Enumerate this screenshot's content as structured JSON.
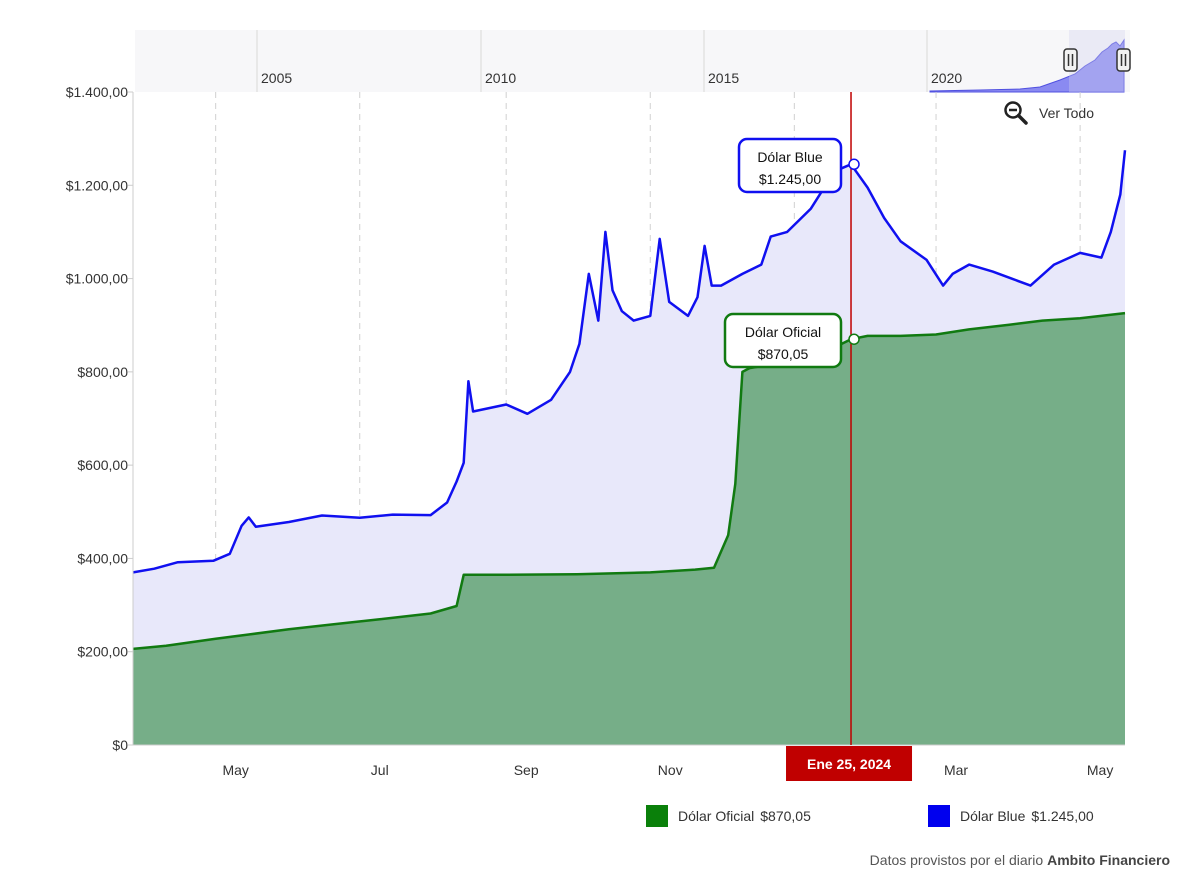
{
  "colors": {
    "oficial_line": "#117a11",
    "oficial_fill": "#76ae88",
    "blue_line": "#1010f0",
    "blue_fill": "#e8e8fa",
    "crosshair": "#c00000",
    "navigator_fill": "#7d7df0"
  },
  "reset_zoom": {
    "label": "Ver Todo",
    "icon": "zoom-out-icon"
  },
  "navigator": {
    "labels": [
      "2005",
      "2010",
      "2015",
      "2020"
    ]
  },
  "crosshair_label": "Ene 25, 2024",
  "tooltips": {
    "blue": {
      "name": "Dólar Blue",
      "value": "$1.245,00"
    },
    "oficial": {
      "name": "Dólar Oficial",
      "value": "$870,05"
    }
  },
  "legend": [
    {
      "name": "Dólar Oficial",
      "value": "$870,05",
      "color": "#0a800a"
    },
    {
      "name": "Dólar Blue",
      "value": "$1.245,00",
      "color": "#0000ee"
    }
  ],
  "credits": {
    "prefix": "Datos provistos por el diario ",
    "source": "Ambito Financiero"
  },
  "chart_data": {
    "type": "area",
    "x_tick_labels": [
      "May",
      "Jul",
      "Sep",
      "Nov",
      "Mar",
      "May"
    ],
    "y_tick_labels": [
      "$0",
      "$200,00",
      "$400,00",
      "$600,00",
      "$800,00",
      "$1.000,00",
      "$1.200,00",
      "$1.400,00"
    ],
    "ylim": [
      0,
      1400
    ],
    "x_range": [
      "2023-03-27",
      "2024-05-20"
    ],
    "grid": "vertical dashed",
    "legend_position": "bottom-right",
    "highlighted_date": "2024-01-25",
    "series": [
      {
        "name": "Dólar Oficial",
        "points": [
          [
            "2023-03-27",
            206
          ],
          [
            "2023-04-10",
            213
          ],
          [
            "2023-05-01",
            228
          ],
          [
            "2023-05-15",
            237
          ],
          [
            "2023-06-01",
            248
          ],
          [
            "2023-06-20",
            259
          ],
          [
            "2023-07-10",
            270
          ],
          [
            "2023-07-31",
            282
          ],
          [
            "2023-08-11",
            298
          ],
          [
            "2023-08-14",
            365
          ],
          [
            "2023-09-01",
            365
          ],
          [
            "2023-10-01",
            366
          ],
          [
            "2023-11-01",
            370
          ],
          [
            "2023-11-20",
            376
          ],
          [
            "2023-11-28",
            380
          ],
          [
            "2023-12-04",
            450
          ],
          [
            "2023-12-07",
            560
          ],
          [
            "2023-12-10",
            800
          ],
          [
            "2023-12-13",
            808
          ],
          [
            "2023-12-25",
            818
          ],
          [
            "2024-01-01",
            826
          ],
          [
            "2024-01-15",
            845
          ],
          [
            "2024-01-25",
            870
          ],
          [
            "2024-02-01",
            877
          ],
          [
            "2024-02-15",
            877
          ],
          [
            "2024-03-01",
            880
          ],
          [
            "2024-03-15",
            891
          ],
          [
            "2024-04-01",
            901
          ],
          [
            "2024-04-15",
            910
          ],
          [
            "2024-05-01",
            915
          ],
          [
            "2024-05-20",
            926
          ]
        ]
      },
      {
        "name": "Dólar Blue",
        "points": [
          [
            "2023-03-27",
            370
          ],
          [
            "2023-04-05",
            378
          ],
          [
            "2023-04-15",
            392
          ],
          [
            "2023-04-30",
            395
          ],
          [
            "2023-05-07",
            410
          ],
          [
            "2023-05-12",
            470
          ],
          [
            "2023-05-15",
            488
          ],
          [
            "2023-05-18",
            468
          ],
          [
            "2023-06-01",
            478
          ],
          [
            "2023-06-15",
            492
          ],
          [
            "2023-07-01",
            487
          ],
          [
            "2023-07-15",
            494
          ],
          [
            "2023-07-31",
            493
          ],
          [
            "2023-08-07",
            520
          ],
          [
            "2023-08-11",
            565
          ],
          [
            "2023-08-14",
            605
          ],
          [
            "2023-08-16",
            780
          ],
          [
            "2023-08-18",
            715
          ],
          [
            "2023-09-01",
            730
          ],
          [
            "2023-09-10",
            710
          ],
          [
            "2023-09-20",
            740
          ],
          [
            "2023-09-28",
            800
          ],
          [
            "2023-10-02",
            860
          ],
          [
            "2023-10-06",
            1010
          ],
          [
            "2023-10-10",
            910
          ],
          [
            "2023-10-13",
            1100
          ],
          [
            "2023-10-16",
            975
          ],
          [
            "2023-10-20",
            930
          ],
          [
            "2023-10-25",
            910
          ],
          [
            "2023-11-01",
            920
          ],
          [
            "2023-11-05",
            1085
          ],
          [
            "2023-11-09",
            950
          ],
          [
            "2023-11-13",
            935
          ],
          [
            "2023-11-17",
            920
          ],
          [
            "2023-11-21",
            960
          ],
          [
            "2023-11-24",
            1070
          ],
          [
            "2023-11-27",
            985
          ],
          [
            "2023-12-01",
            985
          ],
          [
            "2023-12-10",
            1010
          ],
          [
            "2023-12-18",
            1030
          ],
          [
            "2023-12-22",
            1090
          ],
          [
            "2023-12-29",
            1100
          ],
          [
            "2024-01-08",
            1150
          ],
          [
            "2024-01-18",
            1230
          ],
          [
            "2024-01-25",
            1245
          ],
          [
            "2024-02-01",
            1195
          ],
          [
            "2024-02-08",
            1130
          ],
          [
            "2024-02-15",
            1080
          ],
          [
            "2024-02-26",
            1040
          ],
          [
            "2024-03-04",
            985
          ],
          [
            "2024-03-08",
            1010
          ],
          [
            "2024-03-15",
            1030
          ],
          [
            "2024-03-25",
            1015
          ],
          [
            "2024-04-02",
            1000
          ],
          [
            "2024-04-10",
            985
          ],
          [
            "2024-04-20",
            1030
          ],
          [
            "2024-05-01",
            1055
          ],
          [
            "2024-05-10",
            1045
          ],
          [
            "2024-05-14",
            1100
          ],
          [
            "2024-05-18",
            1180
          ],
          [
            "2024-05-20",
            1275
          ]
        ]
      }
    ]
  }
}
